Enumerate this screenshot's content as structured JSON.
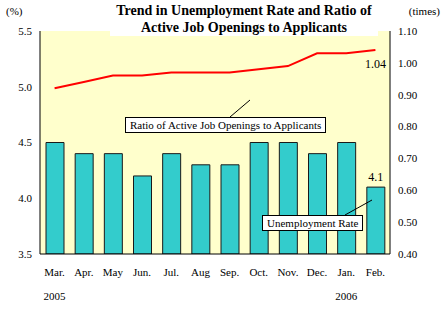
{
  "chart_data": {
    "type": "bar_line",
    "title": "Trend in Unemployment Rate and Ratio of Active Job Openings to Applicants",
    "categories": [
      "Mar.",
      "Apr.",
      "May",
      "Jun.",
      "Jul.",
      "Aug",
      "Sep.",
      "Oct.",
      "Nov.",
      "Dec.",
      "Jan.",
      "Feb."
    ],
    "x_groups": [
      {
        "category": "Mar.",
        "label": "2005"
      },
      {
        "category": "Jan.",
        "label": "2006"
      }
    ],
    "y_label": "(%)",
    "y2_label": "(times)",
    "ylim": [
      3.5,
      5.5
    ],
    "yticks": [
      3.5,
      {
        "value": 4,
        "label": "4.0"
      },
      4.5,
      {
        "value": 5,
        "label": "5.0"
      },
      5.5
    ],
    "y2lim": [
      0.4,
      1.1
    ],
    "y2ticks": [
      {
        "value": 0.4,
        "label": "0.40"
      },
      {
        "value": 0.5,
        "label": "0.50"
      },
      {
        "value": 0.6,
        "label": "0.60"
      },
      {
        "value": 0.7,
        "label": "0.70"
      },
      {
        "value": 0.8,
        "label": "0.80"
      },
      {
        "value": 0.9,
        "label": "0.90"
      },
      {
        "value": 1.0,
        "label": "1.00"
      },
      {
        "value": 1.1,
        "label": "1.10"
      }
    ],
    "grid": false,
    "series": [
      {
        "name": "Unemployment Rate",
        "type": "bar",
        "color": "#33CCCC",
        "values": [
          4.5,
          4.4,
          4.4,
          4.2,
          4.4,
          4.3,
          4.3,
          4.5,
          4.5,
          4.4,
          4.5,
          4.1
        ]
      },
      {
        "name": "Ratio of Active Job Openings to Applicants",
        "type": "line",
        "axis": "y2",
        "color": "#FF0000",
        "values": [
          0.92,
          0.94,
          0.96,
          0.96,
          0.97,
          0.97,
          0.97,
          0.98,
          0.99,
          1.03,
          1.03,
          1.04
        ]
      }
    ],
    "annotations": [
      {
        "series": "Unemployment Rate",
        "category": "Feb.",
        "text": "4.1"
      },
      {
        "series": "Ratio of Active Job Openings to Applicants",
        "category": "Feb.",
        "text": "1.04"
      }
    ]
  }
}
